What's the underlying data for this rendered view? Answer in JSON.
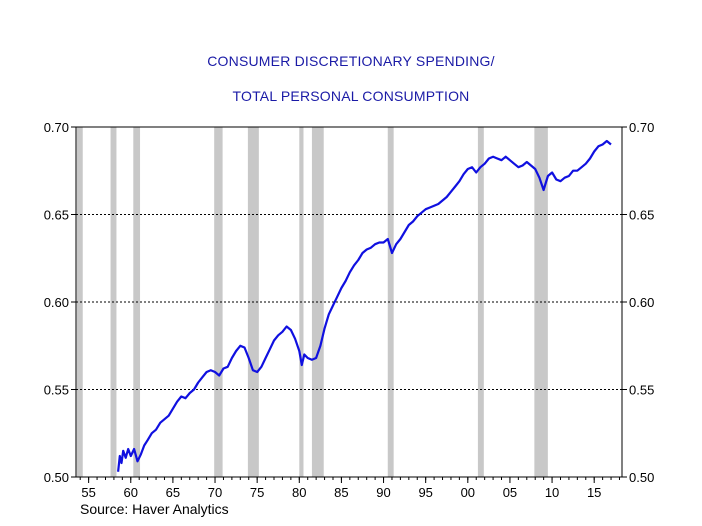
{
  "colors": {
    "background": "#ffffff",
    "title": "#1a1aa6",
    "series": "#1010e0",
    "recession_band": "#c8c8c8",
    "gridline": "#000000",
    "axis": "#000000"
  },
  "chart_data": {
    "type": "line",
    "title_lines": [
      "CONSUMER DISCRETIONARY SPENDING/",
      "TOTAL PERSONAL CONSUMPTION"
    ],
    "source": "Source: Haver Analytics",
    "xlabel": "",
    "ylabel": "",
    "xlim": [
      1953.5,
      2018.3
    ],
    "ylim": [
      0.5,
      0.7
    ],
    "x_ticks": [
      1955,
      1960,
      1965,
      1970,
      1975,
      1980,
      1985,
      1990,
      1995,
      2000,
      2005,
      2010,
      2015
    ],
    "x_tick_labels": [
      "55",
      "60",
      "65",
      "70",
      "75",
      "80",
      "85",
      "90",
      "95",
      "00",
      "05",
      "10",
      "15"
    ],
    "y_ticks": [
      0.5,
      0.55,
      0.6,
      0.65,
      0.7
    ],
    "y_tick_labels": [
      "0.50",
      "0.55",
      "0.60",
      "0.65",
      "0.70"
    ],
    "left_axis": true,
    "right_axis": true,
    "dashed_gridlines": [
      0.55,
      0.6,
      0.65
    ],
    "recession_bands": [
      [
        1953.6,
        1954.3
      ],
      [
        1957.6,
        1958.3
      ],
      [
        1960.3,
        1961.1
      ],
      [
        1969.9,
        1970.9
      ],
      [
        1973.9,
        1975.2
      ],
      [
        1980.0,
        1980.5
      ],
      [
        1981.5,
        1982.9
      ],
      [
        1990.5,
        1991.2
      ],
      [
        2001.2,
        2001.9
      ],
      [
        2007.9,
        2009.5
      ]
    ],
    "series": [
      {
        "x": [
          1958.5,
          1958.7,
          1958.9,
          1959.1,
          1959.4,
          1959.7,
          1960.0,
          1960.4,
          1960.8,
          1961.2,
          1961.6,
          1962.0,
          1962.5,
          1963.0,
          1963.5,
          1964.0,
          1964.5,
          1965.0,
          1965.5,
          1966.0,
          1966.5,
          1967.0,
          1967.5,
          1968.0,
          1968.5,
          1969.0,
          1969.5,
          1970.0,
          1970.5,
          1971.0,
          1971.5,
          1972.0,
          1972.5,
          1973.0,
          1973.5,
          1974.0,
          1974.5,
          1975.0,
          1975.5,
          1976.0,
          1976.5,
          1977.0,
          1977.5,
          1978.0,
          1978.5,
          1979.0,
          1979.5,
          1980.0,
          1980.3,
          1980.6,
          1981.0,
          1981.5,
          1982.0,
          1982.5,
          1983.0,
          1983.5,
          1984.0,
          1984.5,
          1985.0,
          1985.5,
          1986.0,
          1986.5,
          1987.0,
          1987.5,
          1988.0,
          1988.5,
          1989.0,
          1989.5,
          1990.0,
          1990.5,
          1991.0,
          1991.5,
          1992.0,
          1992.5,
          1993.0,
          1993.5,
          1994.0,
          1994.5,
          1995.0,
          1995.5,
          1996.0,
          1996.5,
          1997.0,
          1997.5,
          1998.0,
          1998.5,
          1999.0,
          1999.5,
          2000.0,
          2000.5,
          2001.0,
          2001.5,
          2002.0,
          2002.5,
          2003.0,
          2003.5,
          2004.0,
          2004.5,
          2005.0,
          2005.5,
          2006.0,
          2006.5,
          2007.0,
          2007.5,
          2008.0,
          2008.5,
          2009.0,
          2009.5,
          2010.0,
          2010.5,
          2011.0,
          2011.5,
          2012.0,
          2012.5,
          2013.0,
          2013.5,
          2014.0,
          2014.5,
          2015.0,
          2015.5,
          2016.0,
          2016.5,
          2017.0
        ],
        "values": [
          0.503,
          0.512,
          0.508,
          0.515,
          0.511,
          0.516,
          0.512,
          0.516,
          0.509,
          0.513,
          0.518,
          0.521,
          0.525,
          0.527,
          0.531,
          0.533,
          0.535,
          0.539,
          0.543,
          0.546,
          0.545,
          0.548,
          0.55,
          0.554,
          0.557,
          0.56,
          0.561,
          0.56,
          0.558,
          0.562,
          0.563,
          0.568,
          0.572,
          0.575,
          0.574,
          0.568,
          0.561,
          0.56,
          0.563,
          0.568,
          0.573,
          0.578,
          0.581,
          0.583,
          0.586,
          0.584,
          0.579,
          0.572,
          0.564,
          0.57,
          0.568,
          0.567,
          0.568,
          0.575,
          0.585,
          0.593,
          0.598,
          0.603,
          0.608,
          0.612,
          0.617,
          0.621,
          0.624,
          0.628,
          0.63,
          0.631,
          0.633,
          0.634,
          0.634,
          0.636,
          0.628,
          0.633,
          0.636,
          0.64,
          0.644,
          0.646,
          0.649,
          0.651,
          0.653,
          0.654,
          0.655,
          0.656,
          0.658,
          0.66,
          0.663,
          0.666,
          0.669,
          0.673,
          0.676,
          0.677,
          0.674,
          0.677,
          0.679,
          0.682,
          0.683,
          0.682,
          0.681,
          0.683,
          0.681,
          0.679,
          0.677,
          0.678,
          0.68,
          0.678,
          0.676,
          0.671,
          0.664,
          0.672,
          0.674,
          0.67,
          0.669,
          0.671,
          0.672,
          0.675,
          0.675,
          0.677,
          0.679,
          0.682,
          0.686,
          0.689,
          0.69,
          0.692,
          0.69
        ]
      }
    ]
  }
}
